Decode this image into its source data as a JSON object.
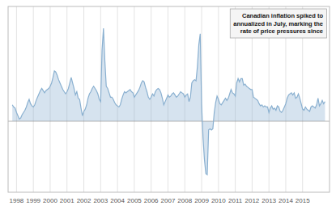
{
  "chart_data": {
    "type": "area",
    "annotation": "Canadian inflation spiked to\nannualized in July, marking the\nrate of price pressures since",
    "color": "#8ab0d0",
    "grid": true,
    "tick_labels": "x",
    "xlim": [
      1997.5,
      2016.6
    ],
    "xticks": [
      1998,
      1999,
      2000,
      2001,
      2002,
      2003,
      2004,
      2005,
      2006,
      2007,
      2008,
      2009,
      2010,
      2011,
      2012,
      2013,
      2014,
      2015
    ],
    "ylim": [
      -6.5,
      10.5
    ],
    "x": [
      1997.75,
      1997.833,
      1997.917,
      1998.0,
      1998.083,
      1998.167,
      1998.25,
      1998.333,
      1998.417,
      1998.5,
      1998.583,
      1998.667,
      1998.75,
      1998.833,
      1998.917,
      1999.0,
      1999.083,
      1999.167,
      1999.25,
      1999.333,
      1999.417,
      1999.5,
      1999.583,
      1999.667,
      1999.75,
      1999.833,
      1999.917,
      2000.0,
      2000.083,
      2000.167,
      2000.25,
      2000.333,
      2000.417,
      2000.5,
      2000.583,
      2000.667,
      2000.75,
      2000.833,
      2000.917,
      2001.0,
      2001.083,
      2001.167,
      2001.25,
      2001.333,
      2001.417,
      2001.5,
      2001.583,
      2001.667,
      2001.75,
      2001.833,
      2001.917,
      2002.0,
      2002.083,
      2002.167,
      2002.25,
      2002.333,
      2002.417,
      2002.5,
      2002.583,
      2002.667,
      2002.75,
      2002.833,
      2002.917,
      2003.0,
      2003.083,
      2003.167,
      2003.25,
      2003.333,
      2003.417,
      2003.5,
      2003.583,
      2003.667,
      2003.75,
      2003.833,
      2003.917,
      2004.0,
      2004.083,
      2004.167,
      2004.25,
      2004.333,
      2004.417,
      2004.5,
      2004.583,
      2004.667,
      2004.75,
      2004.833,
      2004.917,
      2005.0,
      2005.083,
      2005.167,
      2005.25,
      2005.333,
      2005.417,
      2005.5,
      2005.583,
      2005.667,
      2005.75,
      2005.833,
      2005.917,
      2006.0,
      2006.083,
      2006.167,
      2006.25,
      2006.333,
      2006.417,
      2006.5,
      2006.583,
      2006.667,
      2006.75,
      2006.833,
      2006.917,
      2007.0,
      2007.083,
      2007.167,
      2007.25,
      2007.333,
      2007.417,
      2007.5,
      2007.583,
      2007.667,
      2007.75,
      2007.833,
      2007.917,
      2008.0,
      2008.083,
      2008.167,
      2008.25,
      2008.333,
      2008.417,
      2008.5,
      2008.583,
      2008.667,
      2008.75,
      2008.833,
      2008.917,
      2009.0,
      2009.083,
      2009.167,
      2009.25,
      2009.333,
      2009.417,
      2009.5,
      2009.583,
      2009.667,
      2009.75,
      2009.833,
      2009.917,
      2010.0,
      2010.083,
      2010.167,
      2010.25,
      2010.333,
      2010.417,
      2010.5,
      2010.583,
      2010.667,
      2010.75,
      2010.833,
      2010.917,
      2011.0,
      2011.083,
      2011.167,
      2011.25,
      2011.333,
      2011.417,
      2011.5,
      2011.583,
      2011.667,
      2011.75,
      2011.833,
      2011.917,
      2012.0,
      2012.083,
      2012.167,
      2012.25,
      2012.333,
      2012.417,
      2012.5,
      2012.583,
      2012.667,
      2012.75,
      2012.833,
      2012.917,
      2013.0,
      2013.083,
      2013.167,
      2013.25,
      2013.333,
      2013.417,
      2013.5,
      2013.583,
      2013.667,
      2013.75,
      2013.833,
      2013.917,
      2014.0,
      2014.083,
      2014.167,
      2014.25,
      2014.333,
      2014.417,
      2014.5,
      2014.583,
      2014.667,
      2014.75,
      2014.833,
      2014.917,
      2015.0,
      2015.083,
      2015.167,
      2015.25,
      2015.333,
      2015.417,
      2015.5,
      2015.583,
      2015.667,
      2015.75,
      2015.833,
      2015.917,
      2016.0,
      2016.083,
      2016.167,
      2016.25,
      2016.333
    ],
    "values": [
      1.5,
      1.3,
      1.2,
      0.8,
      0.5,
      0.2,
      0.3,
      0.6,
      0.8,
      1.0,
      1.3,
      1.7,
      2.0,
      1.6,
      1.4,
      1.3,
      1.5,
      1.9,
      2.2,
      2.5,
      2.8,
      3.0,
      2.8,
      2.6,
      2.8,
      2.9,
      3.0,
      3.2,
      3.5,
      4.0,
      4.6,
      4.5,
      4.2,
      3.8,
      3.5,
      3.2,
      2.9,
      2.7,
      2.5,
      2.7,
      3.0,
      3.5,
      4.0,
      3.5,
      3.0,
      2.4,
      2.7,
      2.1,
      2.0,
      1.2,
      0.5,
      0.9,
      1.1,
      1.5,
      2.1,
      2.5,
      2.7,
      3.0,
      3.2,
      3.0,
      2.8,
      2.5,
      2.0,
      1.8,
      6.5,
      8.5,
      5.5,
      3.2,
      3.0,
      2.6,
      2.2,
      2.2,
      2.0,
      1.7,
      1.5,
      1.4,
      1.3,
      1.5,
      2.0,
      2.4,
      2.7,
      2.6,
      2.7,
      2.8,
      2.9,
      2.7,
      2.6,
      2.2,
      2.4,
      2.6,
      2.8,
      3.1,
      3.5,
      3.7,
      3.6,
      3.1,
      2.7,
      2.2,
      2.0,
      2.2,
      2.5,
      2.3,
      2.7,
      2.9,
      3.0,
      2.9,
      2.6,
      2.1,
      1.5,
      1.8,
      2.1,
      2.4,
      2.2,
      2.3,
      2.5,
      2.6,
      2.4,
      2.2,
      2.3,
      2.5,
      2.7,
      2.6,
      2.5,
      2.2,
      2.4,
      2.5,
      1.8,
      2.2,
      3.5,
      3.7,
      3.8,
      3.7,
      5.0,
      7.0,
      8.0,
      1.5,
      -1.5,
      -3.5,
      -4.8,
      -4.9,
      -0.8,
      -0.7,
      -0.8,
      -0.7,
      0.8,
      1.7,
      2.3,
      2.0,
      1.6,
      1.5,
      1.7,
      1.9,
      2.1,
      1.9,
      2.1,
      2.5,
      2.9,
      2.6,
      2.5,
      2.3,
      3.5,
      3.9,
      3.6,
      3.9,
      3.9,
      3.3,
      3.4,
      3.2,
      3.1,
      3.0,
      2.9,
      2.9,
      2.2,
      2.1,
      2.0,
      1.9,
      1.6,
      1.4,
      1.5,
      1.3,
      1.4,
      1.3,
      1.3,
      0.8,
      1.2,
      1.4,
      1.1,
      1.2,
      1.0,
      1.4,
      1.3,
      0.9,
      0.8,
      1.0,
      1.3,
      1.6,
      2.1,
      2.4,
      2.5,
      2.6,
      2.4,
      2.6,
      2.1,
      2.2,
      2.5,
      2.1,
      1.6,
      1.1,
      1.0,
      1.3,
      1.1,
      1.0,
      0.9,
      1.3,
      1.4,
      1.3,
      1.2,
      1.5,
      2.1,
      1.4,
      1.6,
      1.9,
      1.6,
      1.8
    ]
  }
}
